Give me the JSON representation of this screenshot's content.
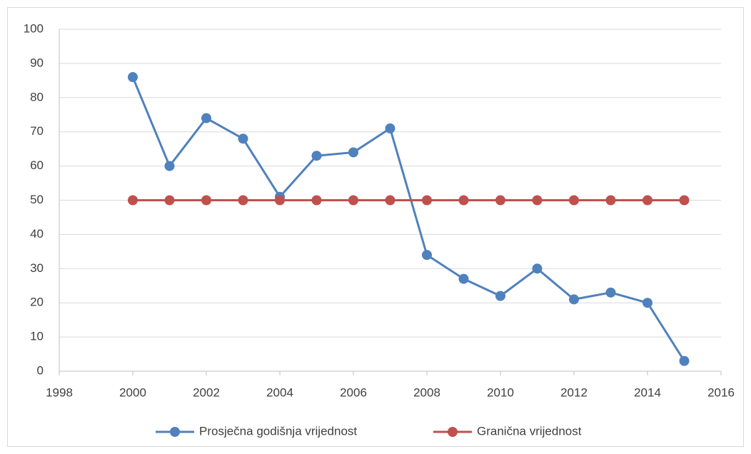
{
  "chart_data": {
    "type": "line",
    "x": [
      2000,
      2001,
      2002,
      2003,
      2004,
      2005,
      2006,
      2007,
      2008,
      2009,
      2010,
      2011,
      2012,
      2013,
      2014,
      2015
    ],
    "series": [
      {
        "name": "Prosječna godišnja vrijednost",
        "color": "#4f81bd",
        "values": [
          86,
          60,
          74,
          68,
          51,
          63,
          64,
          71,
          34,
          27,
          22,
          30,
          21,
          23,
          20,
          3
        ]
      },
      {
        "name": "Granična vrijednost",
        "color": "#c0504d",
        "values": [
          50,
          50,
          50,
          50,
          50,
          50,
          50,
          50,
          50,
          50,
          50,
          50,
          50,
          50,
          50,
          50
        ]
      }
    ],
    "xlim": [
      1998,
      2016
    ],
    "xticks": [
      1998,
      2000,
      2002,
      2004,
      2006,
      2008,
      2010,
      2012,
      2014,
      2016
    ],
    "ylim": [
      0,
      100
    ],
    "yticks": [
      0,
      10,
      20,
      30,
      40,
      50,
      60,
      70,
      80,
      90,
      100
    ],
    "grid": true,
    "legend": "bottom"
  }
}
